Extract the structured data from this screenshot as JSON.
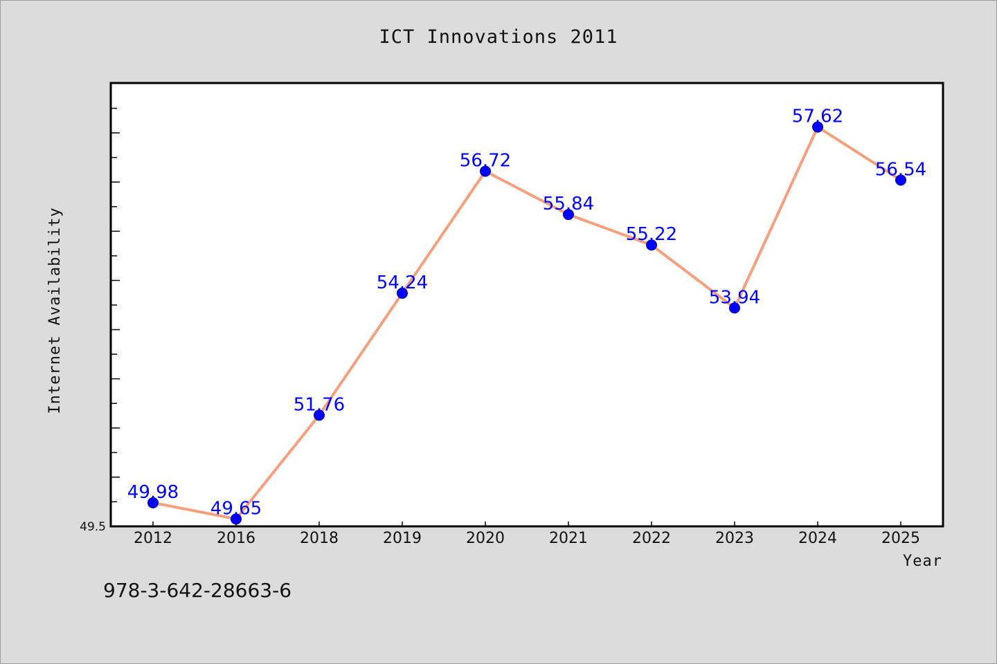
{
  "chart_data": {
    "type": "line",
    "title": "ICT Innovations 2011",
    "xlabel": "Year",
    "ylabel": "Internet Availability",
    "categories": [
      "2012",
      "2016",
      "2018",
      "2019",
      "2020",
      "2021",
      "2022",
      "2023",
      "2024",
      "2025"
    ],
    "values": [
      49.98,
      49.65,
      51.76,
      54.24,
      56.72,
      55.84,
      55.22,
      53.94,
      57.62,
      56.54
    ],
    "data_labels": [
      "49.98",
      "49.65",
      "51.76",
      "54.24",
      "56.72",
      "55.84",
      "55.22",
      "53.94",
      "57.62",
      "56.54"
    ],
    "ylim": [
      49.5,
      58.5
    ],
    "y_tick_label": "49.5",
    "grid": false,
    "line_color": "#f4a07e",
    "marker_color": "#0000ff",
    "label_color": "#0000ff"
  },
  "footer": {
    "isbn": "978-3-642-28663-6"
  }
}
